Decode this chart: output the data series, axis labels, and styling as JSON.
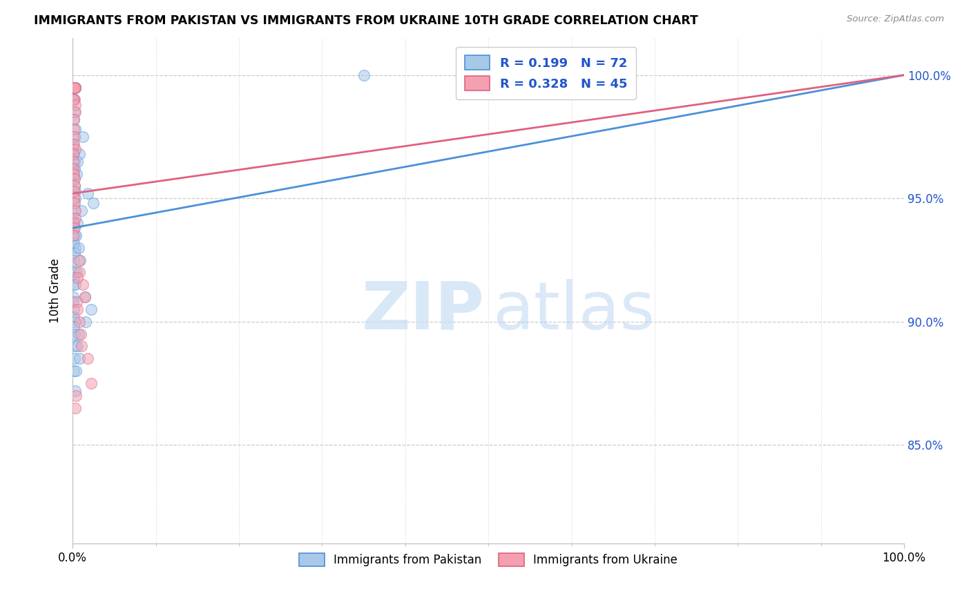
{
  "title": "IMMIGRANTS FROM PAKISTAN VS IMMIGRANTS FROM UKRAINE 10TH GRADE CORRELATION CHART",
  "source": "Source: ZipAtlas.com",
  "series1_label": "Immigrants from Pakistan",
  "series2_label": "Immigrants from Ukraine",
  "series1_R": 0.199,
  "series1_N": 72,
  "series2_R": 0.328,
  "series2_N": 45,
  "series1_color_fill": "#a8c8e8",
  "series1_color_edge": "#4a90d9",
  "series2_color_fill": "#f4a0b0",
  "series2_color_edge": "#e06080",
  "series1_line_color": "#4a90d9",
  "series2_line_color": "#e06080",
  "legend_text_color": "#2255cc",
  "xlim": [
    0.0,
    100.0
  ],
  "ylim": [
    81.0,
    101.5
  ],
  "ytick_vals": [
    85.0,
    90.0,
    95.0,
    100.0
  ],
  "ytick_labels": [
    "85.0%",
    "90.0%",
    "95.0%",
    "100.0%"
  ],
  "xtick_labels": [
    "0.0%",
    "100.0%"
  ],
  "ylabel": "10th Grade",
  "watermark_zip": "ZIP",
  "watermark_atlas": "atlas",
  "background_color": "#ffffff",
  "series1_x": [
    0.15,
    0.22,
    0.18,
    0.12,
    0.08,
    0.25,
    0.3,
    0.2,
    0.1,
    0.35,
    0.28,
    0.15,
    0.18,
    0.22,
    0.12,
    0.3,
    0.08,
    0.05,
    0.1,
    0.15,
    0.2,
    0.25,
    0.18,
    0.12,
    0.22,
    0.28,
    0.35,
    0.15,
    0.2,
    0.1,
    0.08,
    0.18,
    0.22,
    0.3,
    0.12,
    0.25,
    0.15,
    0.2,
    0.18,
    0.1,
    0.08,
    0.05,
    0.12,
    0.15,
    0.2,
    0.18,
    0.25,
    0.3,
    0.22,
    0.15,
    1.2,
    0.8,
    0.6,
    0.45,
    1.8,
    2.5,
    1.1,
    0.55,
    0.4,
    0.75,
    0.9,
    0.5,
    0.35,
    1.5,
    2.2,
    1.6,
    0.7,
    0.6,
    0.85,
    0.4,
    0.3,
    35.0
  ],
  "series1_y": [
    99.5,
    99.5,
    99.5,
    99.5,
    99.5,
    99.5,
    99.5,
    99.5,
    99.5,
    99.5,
    99.5,
    99.0,
    99.0,
    98.5,
    98.2,
    97.8,
    97.5,
    97.0,
    97.2,
    96.8,
    96.5,
    96.2,
    96.0,
    95.8,
    95.5,
    95.3,
    95.0,
    94.8,
    94.5,
    94.2,
    94.0,
    93.8,
    93.5,
    93.0,
    93.2,
    92.8,
    92.5,
    92.0,
    91.8,
    91.5,
    91.0,
    90.8,
    90.5,
    90.2,
    90.0,
    89.8,
    89.5,
    89.0,
    88.5,
    88.0,
    97.5,
    96.8,
    96.5,
    96.0,
    95.2,
    94.8,
    94.5,
    94.0,
    93.5,
    93.0,
    92.5,
    92.0,
    91.5,
    91.0,
    90.5,
    90.0,
    89.5,
    89.0,
    88.5,
    88.0,
    87.2,
    100.0
  ],
  "series2_x": [
    0.15,
    0.22,
    0.18,
    0.12,
    0.08,
    0.25,
    0.3,
    0.2,
    0.1,
    0.35,
    0.28,
    0.15,
    0.18,
    0.22,
    0.12,
    0.3,
    0.08,
    0.05,
    0.1,
    0.15,
    0.2,
    0.25,
    0.18,
    0.12,
    0.22,
    0.28,
    0.35,
    0.15,
    0.2,
    0.1,
    0.7,
    0.85,
    1.2,
    1.5,
    0.6,
    0.45,
    0.55,
    0.8,
    0.95,
    1.1,
    1.8,
    2.2,
    0.4,
    0.3,
    58.0
  ],
  "series2_y": [
    99.5,
    99.5,
    99.5,
    99.5,
    99.5,
    99.5,
    99.5,
    99.0,
    99.0,
    98.8,
    98.5,
    98.2,
    97.8,
    97.5,
    97.2,
    97.0,
    96.8,
    96.5,
    96.2,
    96.0,
    95.8,
    95.5,
    95.3,
    95.0,
    94.8,
    94.5,
    94.2,
    94.0,
    93.8,
    93.5,
    92.5,
    92.0,
    91.5,
    91.0,
    91.8,
    90.8,
    90.5,
    90.0,
    89.5,
    89.0,
    88.5,
    87.5,
    87.0,
    86.5,
    100.0
  ],
  "line1_x0": 0.0,
  "line1_y0": 93.8,
  "line1_x1": 100.0,
  "line1_y1": 100.0,
  "line2_x0": 0.0,
  "line2_y0": 95.2,
  "line2_x1": 100.0,
  "line2_y1": 100.0
}
